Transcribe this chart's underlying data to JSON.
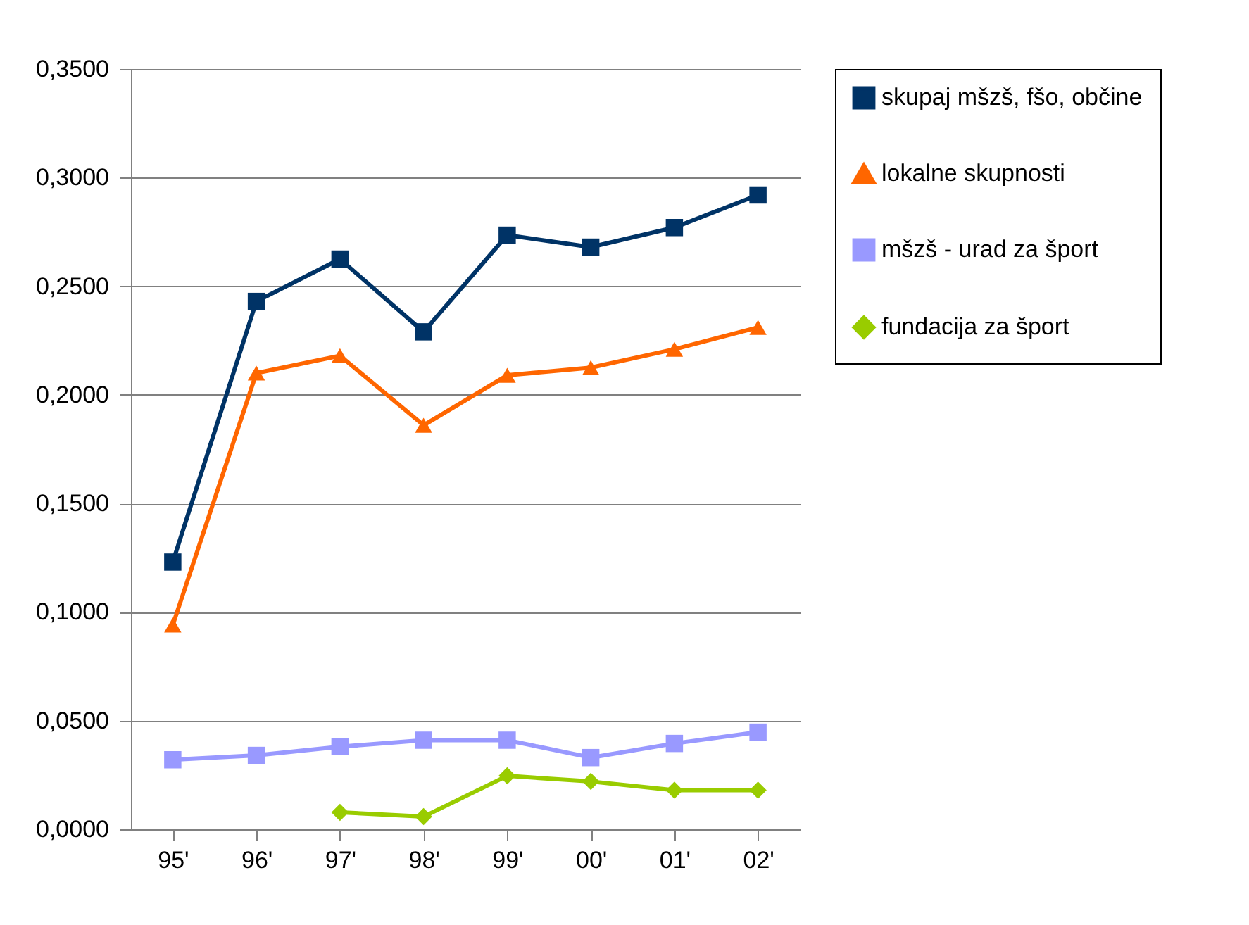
{
  "chart_data": {
    "type": "line",
    "categories": [
      "95'",
      "96'",
      "97'",
      "98'",
      "99'",
      "00'",
      "01'",
      "02'"
    ],
    "series": [
      {
        "name": "skupaj mšzš, fšo, občine",
        "color": "#003366",
        "marker": "square",
        "values": [
          0.123,
          0.243,
          0.2625,
          0.229,
          0.2735,
          0.268,
          0.277,
          0.292
        ]
      },
      {
        "name": "lokalne skupnosti",
        "color": "#ff6600",
        "marker": "triangle",
        "values": [
          0.094,
          0.21,
          0.218,
          0.186,
          0.209,
          0.2125,
          0.221,
          0.231
        ]
      },
      {
        "name": "mšzš - urad za šport",
        "color": "#9999ff",
        "marker": "square",
        "values": [
          0.032,
          0.034,
          0.038,
          0.041,
          0.041,
          0.033,
          0.0395,
          0.0447
        ]
      },
      {
        "name": "fundacija za šport",
        "color": "#99cc00",
        "marker": "diamond",
        "values": [
          null,
          null,
          0.0078,
          0.0058,
          0.0246,
          0.022,
          0.018,
          0.018
        ]
      }
    ],
    "ylim": [
      0,
      0.35
    ],
    "yticks": [
      {
        "value": 0,
        "label": "0,0000"
      },
      {
        "value": 0.05,
        "label": "0,0500"
      },
      {
        "value": 0.1,
        "label": "0,1000"
      },
      {
        "value": 0.15,
        "label": "0,1500"
      },
      {
        "value": 0.2,
        "label": "0,2000"
      },
      {
        "value": 0.25,
        "label": "0,2500"
      },
      {
        "value": 0.3,
        "label": "0,3000"
      },
      {
        "value": 0.35,
        "label": "0,3500"
      }
    ],
    "grid": "y",
    "legend": "right",
    "line_style": "solid"
  }
}
